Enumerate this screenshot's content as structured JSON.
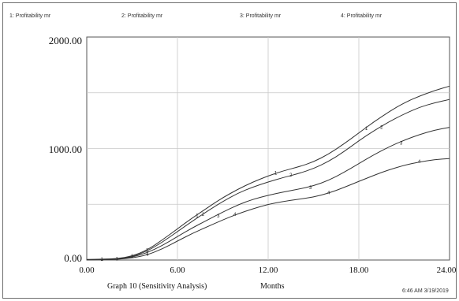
{
  "chart_data": {
    "type": "line",
    "title": "",
    "xlabel": "Months",
    "ylabel": "",
    "xlim": [
      0,
      24
    ],
    "ylim": [
      0,
      2000
    ],
    "x_ticks": [
      "0.00",
      "6.00",
      "12.00",
      "18.00",
      "24.00"
    ],
    "y_ticks": [
      "0.00",
      "1000.00",
      "2000.00"
    ],
    "grid": true,
    "legend_position": "top",
    "legend": [
      {
        "marker": "1",
        "label": "1: Profitability mr"
      },
      {
        "marker": "2",
        "label": "2: Profitability mr"
      },
      {
        "marker": "3",
        "label": "3: Profitability mr"
      },
      {
        "marker": "4",
        "label": "4: Profitability mr"
      }
    ],
    "series": [
      {
        "marker": "1",
        "color": "#333333",
        "points": [
          [
            0,
            5
          ],
          [
            1,
            8
          ],
          [
            2,
            12
          ],
          [
            3,
            35
          ],
          [
            4,
            90
          ],
          [
            5,
            180
          ],
          [
            6,
            280
          ],
          [
            7,
            380
          ],
          [
            8,
            470
          ],
          [
            9,
            560
          ],
          [
            10,
            635
          ],
          [
            11,
            700
          ],
          [
            12,
            755
          ],
          [
            13,
            800
          ],
          [
            14,
            835
          ],
          [
            15,
            880
          ],
          [
            16,
            950
          ],
          [
            17,
            1040
          ],
          [
            18,
            1140
          ],
          [
            19,
            1240
          ],
          [
            20,
            1330
          ],
          [
            21,
            1410
          ],
          [
            22,
            1470
          ],
          [
            23,
            1520
          ],
          [
            24,
            1560
          ]
        ],
        "label_points": [
          [
            1,
            8
          ],
          [
            2,
            12
          ],
          [
            3,
            35
          ],
          [
            4,
            90
          ],
          [
            7.3,
            400
          ],
          [
            12.5,
            780
          ],
          [
            18.5,
            1180
          ]
        ]
      },
      {
        "marker": "2",
        "color": "#333333",
        "points": [
          [
            0,
            3
          ],
          [
            1,
            6
          ],
          [
            2,
            10
          ],
          [
            3,
            30
          ],
          [
            4,
            80
          ],
          [
            5,
            160
          ],
          [
            6,
            255
          ],
          [
            7,
            350
          ],
          [
            8,
            440
          ],
          [
            9,
            525
          ],
          [
            10,
            600
          ],
          [
            11,
            655
          ],
          [
            12,
            700
          ],
          [
            13,
            740
          ],
          [
            14,
            775
          ],
          [
            15,
            820
          ],
          [
            16,
            885
          ],
          [
            17,
            970
          ],
          [
            18,
            1070
          ],
          [
            19,
            1160
          ],
          [
            20,
            1240
          ],
          [
            21,
            1310
          ],
          [
            22,
            1370
          ],
          [
            23,
            1410
          ],
          [
            24,
            1440
          ]
        ],
        "label_points": [
          [
            7.7,
            410
          ],
          [
            13.5,
            765
          ],
          [
            19.5,
            1190
          ]
        ]
      },
      {
        "marker": "3",
        "color": "#333333",
        "points": [
          [
            0,
            2
          ],
          [
            1,
            4
          ],
          [
            2,
            8
          ],
          [
            3,
            25
          ],
          [
            4,
            65
          ],
          [
            5,
            130
          ],
          [
            6,
            210
          ],
          [
            7,
            290
          ],
          [
            8,
            360
          ],
          [
            9,
            430
          ],
          [
            10,
            495
          ],
          [
            11,
            545
          ],
          [
            12,
            580
          ],
          [
            13,
            610
          ],
          [
            14,
            635
          ],
          [
            15,
            665
          ],
          [
            16,
            715
          ],
          [
            17,
            785
          ],
          [
            18,
            865
          ],
          [
            19,
            945
          ],
          [
            20,
            1015
          ],
          [
            21,
            1075
          ],
          [
            22,
            1125
          ],
          [
            23,
            1165
          ],
          [
            24,
            1190
          ]
        ],
        "label_points": [
          [
            8.7,
            395
          ],
          [
            14.8,
            650
          ],
          [
            20.8,
            1050
          ]
        ]
      },
      {
        "marker": "4",
        "color": "#333333",
        "points": [
          [
            0,
            1
          ],
          [
            1,
            3
          ],
          [
            2,
            6
          ],
          [
            3,
            18
          ],
          [
            4,
            45
          ],
          [
            5,
            100
          ],
          [
            6,
            170
          ],
          [
            7,
            240
          ],
          [
            8,
            300
          ],
          [
            9,
            360
          ],
          [
            10,
            415
          ],
          [
            11,
            460
          ],
          [
            12,
            500
          ],
          [
            13,
            525
          ],
          [
            14,
            545
          ],
          [
            15,
            565
          ],
          [
            16,
            600
          ],
          [
            17,
            650
          ],
          [
            18,
            705
          ],
          [
            19,
            760
          ],
          [
            20,
            810
          ],
          [
            21,
            850
          ],
          [
            22,
            880
          ],
          [
            23,
            900
          ],
          [
            24,
            910
          ]
        ],
        "label_points": [
          [
            4,
            50
          ],
          [
            9.8,
            410
          ],
          [
            16,
            605
          ],
          [
            22,
            885
          ]
        ]
      }
    ],
    "footer": {
      "graph_label": "Graph 10 (Sensitivity Analysis)",
      "xlabel": "Months",
      "timestamp": "6:46 AM  3/19/2019"
    }
  }
}
